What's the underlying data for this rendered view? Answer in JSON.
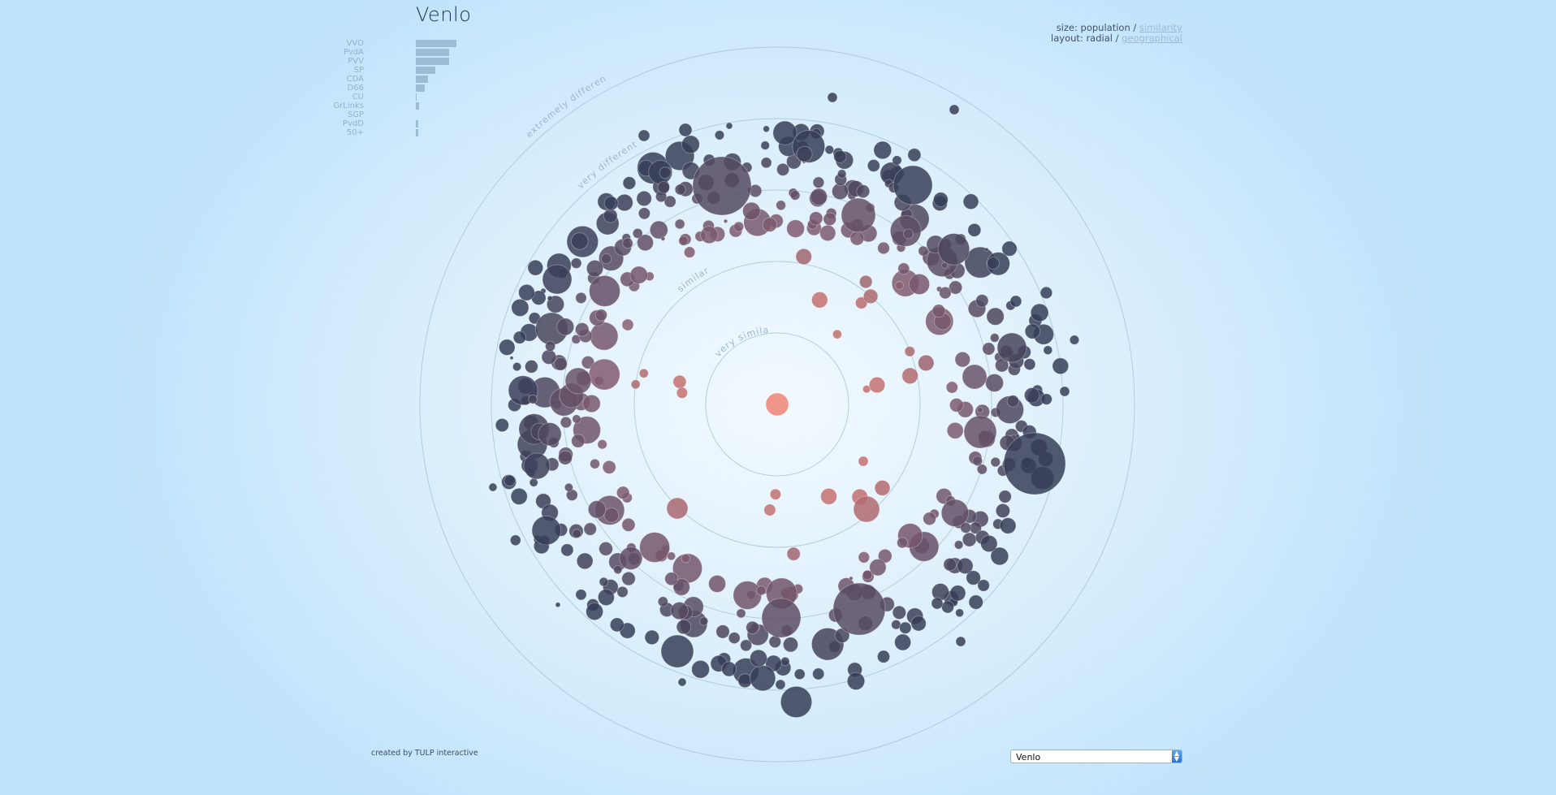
{
  "header": {
    "title": "Venlo"
  },
  "parties": [
    {
      "name": "VVD",
      "value": 100
    },
    {
      "name": "PvdA",
      "value": 82
    },
    {
      "name": "PVV",
      "value": 82
    },
    {
      "name": "SP",
      "value": 48
    },
    {
      "name": "CDA",
      "value": 30
    },
    {
      "name": "D66",
      "value": 22
    },
    {
      "name": "CU",
      "value": 1
    },
    {
      "name": "GrLinks",
      "value": 7
    },
    {
      "name": "SGP",
      "value": 0
    },
    {
      "name": "PvdD",
      "value": 5
    },
    {
      "name": "50+",
      "value": 5
    }
  ],
  "options": {
    "size_prefix": "size:",
    "size_active": "population",
    "size_sep": "/",
    "size_alt": "similarity",
    "layout_prefix": "layout:",
    "layout_active": "radial",
    "layout_sep": "/",
    "layout_alt": "geographical"
  },
  "rings": [
    {
      "label": "very similar"
    },
    {
      "label": "similar"
    },
    {
      "label": ""
    },
    {
      "label": "very different"
    },
    {
      "label": "extremely different"
    }
  ],
  "footer": {
    "credit": "created by TULP interactive"
  },
  "municipality_select": {
    "selected": "Venlo"
  },
  "colors": {
    "center": "#ef8474",
    "near": "#c4706e",
    "mid": "#7d5a6e",
    "far": "#363e57",
    "ring_stroke": "#a7c3d3"
  }
}
